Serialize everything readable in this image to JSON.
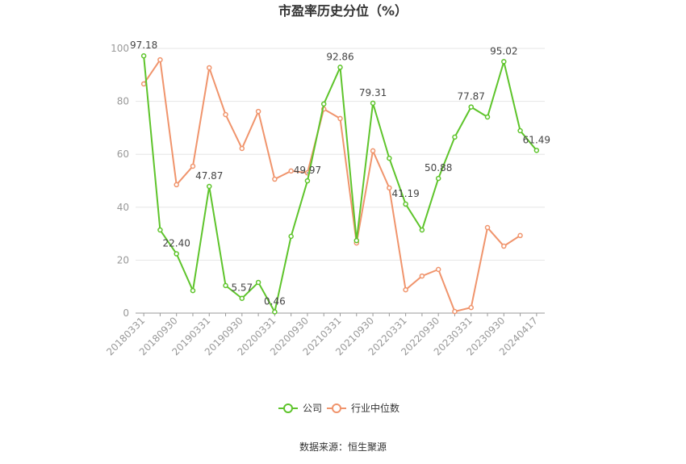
{
  "chart_data": {
    "type": "line",
    "title": "市盈率历史分位（%）",
    "categories": [
      "20180331",
      null,
      "20180930",
      null,
      "20190331",
      null,
      "20190930",
      null,
      "20200331",
      null,
      "20200930",
      null,
      "20210331",
      null,
      "20210930",
      null,
      "20220331",
      null,
      "20220930",
      null,
      "20230331",
      null,
      "20230930",
      null,
      "20240417"
    ],
    "series": [
      {
        "name": "公司",
        "color": "#5ec42b",
        "values": [
          97.18,
          31.4,
          22.4,
          8.5,
          47.87,
          10.4,
          5.57,
          11.6,
          0.46,
          29.0,
          49.97,
          79.0,
          92.86,
          27.4,
          79.31,
          58.5,
          41.19,
          31.4,
          50.88,
          66.5,
          77.87,
          74.1,
          95.02,
          68.9,
          61.49
        ],
        "value_labels": [
          "97.18",
          null,
          "22.40",
          null,
          "47.87",
          null,
          "5.57",
          null,
          "0.46",
          null,
          "49.97",
          null,
          "92.86",
          null,
          "79.31",
          null,
          "41.19",
          null,
          "50.88",
          null,
          "77.87",
          null,
          "95.02",
          null,
          "61.49"
        ]
      },
      {
        "name": "行业中位数",
        "color": "#f0946c",
        "values": [
          86.6,
          95.7,
          48.5,
          55.5,
          92.7,
          75.0,
          62.2,
          76.2,
          50.6,
          53.7,
          53.0,
          77.1,
          73.5,
          26.5,
          61.3,
          47.3,
          8.8,
          14.0,
          16.5,
          0.6,
          2.1,
          32.3,
          25.3,
          29.3,
          null
        ]
      }
    ],
    "ylim": [
      0,
      100
    ],
    "yticks": [
      0,
      20,
      40,
      60,
      80,
      100
    ],
    "grid": true,
    "legend": "bottom",
    "source": "数据来源：恒生聚源"
  }
}
